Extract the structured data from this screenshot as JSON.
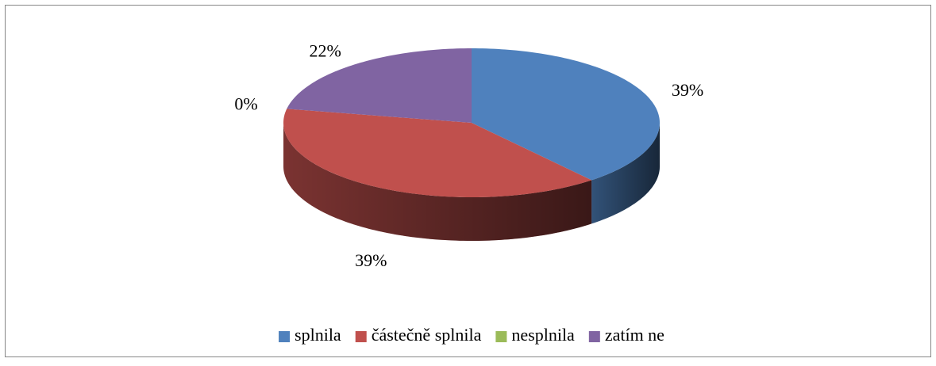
{
  "chart_data": {
    "type": "pie",
    "categories": [
      "splnila",
      "částečně splnila",
      "nesplnila",
      "zatím ne"
    ],
    "values": [
      39,
      39,
      0,
      22
    ],
    "value_labels": [
      "39%",
      "39%",
      "0%",
      "22%"
    ],
    "colors": [
      "#4f81bd",
      "#c0504d",
      "#9bbb59",
      "#8064a2"
    ],
    "legend": "bottom",
    "style": "3d"
  }
}
